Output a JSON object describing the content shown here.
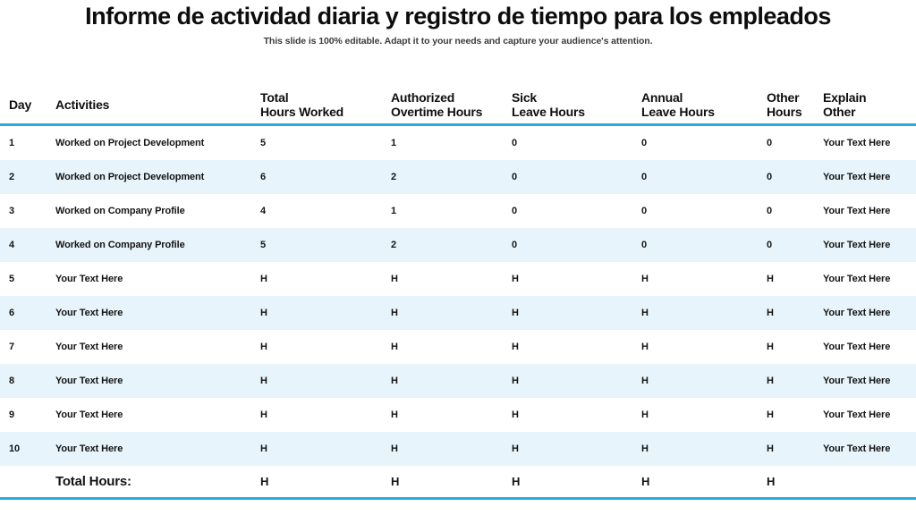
{
  "slide": {
    "title": "Informe de actividad diaria y registro de tiempo para los empleados",
    "subtitle": "This slide is 100% editable. Adapt it to your needs and capture your audience's attention."
  },
  "colors": {
    "accent_rule": "#29ABE2",
    "row_alt_background": "#E7F4FB",
    "text": "#111111"
  },
  "table": {
    "columns": [
      {
        "id": "day",
        "line1": "Day",
        "line2": ""
      },
      {
        "id": "activities",
        "line1": "Activities",
        "line2": ""
      },
      {
        "id": "total",
        "line1": "Total",
        "line2": "Hours Worked"
      },
      {
        "id": "overtime",
        "line1": "Authorized",
        "line2": "Overtime Hours"
      },
      {
        "id": "sick",
        "line1": "Sick",
        "line2": "Leave Hours"
      },
      {
        "id": "annual",
        "line1": "Annual",
        "line2": "Leave Hours"
      },
      {
        "id": "other",
        "line1": "Other",
        "line2": "Hours"
      },
      {
        "id": "explain",
        "line1": "Explain",
        "line2": "Other"
      }
    ],
    "rows": [
      {
        "day": "1",
        "activities": "Worked on Project Development",
        "total": "5",
        "overtime": "1",
        "sick": "0",
        "annual": "0",
        "other": "0",
        "explain": "Your Text Here"
      },
      {
        "day": "2",
        "activities": "Worked on Project Development",
        "total": "6",
        "overtime": "2",
        "sick": "0",
        "annual": "0",
        "other": "0",
        "explain": "Your Text Here"
      },
      {
        "day": "3",
        "activities": "Worked on Company Profile",
        "total": "4",
        "overtime": "1",
        "sick": "0",
        "annual": "0",
        "other": "0",
        "explain": "Your Text Here"
      },
      {
        "day": "4",
        "activities": "Worked on Company Profile",
        "total": "5",
        "overtime": "2",
        "sick": "0",
        "annual": "0",
        "other": "0",
        "explain": "Your Text Here"
      },
      {
        "day": "5",
        "activities": "Your Text Here",
        "total": "H",
        "overtime": "H",
        "sick": "H",
        "annual": "H",
        "other": "H",
        "explain": "Your Text Here"
      },
      {
        "day": "6",
        "activities": "Your Text Here",
        "total": "H",
        "overtime": "H",
        "sick": "H",
        "annual": "H",
        "other": "H",
        "explain": "Your Text Here"
      },
      {
        "day": "7",
        "activities": "Your Text Here",
        "total": "H",
        "overtime": "H",
        "sick": "H",
        "annual": "H",
        "other": "H",
        "explain": "Your Text Here"
      },
      {
        "day": "8",
        "activities": "Your Text Here",
        "total": "H",
        "overtime": "H",
        "sick": "H",
        "annual": "H",
        "other": "H",
        "explain": "Your Text Here"
      },
      {
        "day": "9",
        "activities": "Your Text Here",
        "total": "H",
        "overtime": "H",
        "sick": "H",
        "annual": "H",
        "other": "H",
        "explain": "Your Text Here"
      },
      {
        "day": "10",
        "activities": "Your Text Here",
        "total": "H",
        "overtime": "H",
        "sick": "H",
        "annual": "H",
        "other": "H",
        "explain": "Your Text Here"
      }
    ],
    "total_row": {
      "label": "Total Hours:",
      "total": "H",
      "overtime": "H",
      "sick": "H",
      "annual": "H",
      "other": "H",
      "explain": ""
    }
  }
}
